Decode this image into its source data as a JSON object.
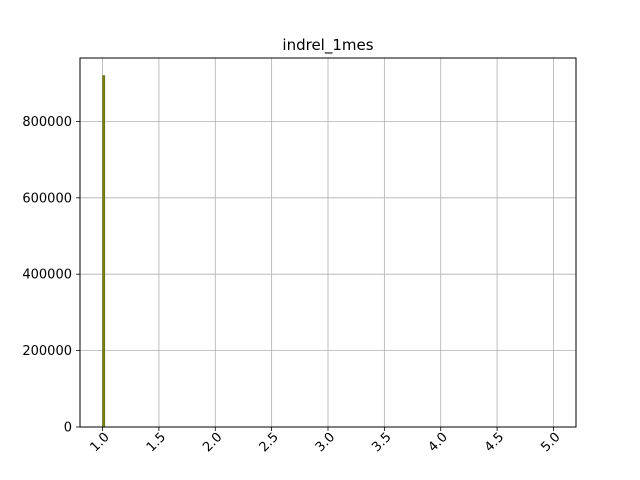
{
  "chart_data": {
    "type": "bar",
    "title": "indrel_1mes",
    "xlabel": "",
    "ylabel": "",
    "grid": true,
    "xlim": [
      0.8,
      5.2
    ],
    "ylim": [
      0,
      966000
    ],
    "x_ticks": [
      1.0,
      1.5,
      2.0,
      2.5,
      3.0,
      3.5,
      4.0,
      4.5,
      5.0
    ],
    "x_tick_labels": [
      "1.0",
      "1.5",
      "2.0",
      "2.5",
      "3.0",
      "3.5",
      "4.0",
      "4.5",
      "5.0"
    ],
    "y_ticks": [
      0,
      200000,
      400000,
      600000,
      800000
    ],
    "y_tick_labels": [
      "0",
      "200000",
      "400000",
      "600000",
      "800000"
    ],
    "bars": [
      {
        "x_start": 1.0,
        "x_end": 1.02,
        "value": 920000
      }
    ],
    "bar_color": "#808000",
    "bar_edge_color": "#556b2f"
  }
}
